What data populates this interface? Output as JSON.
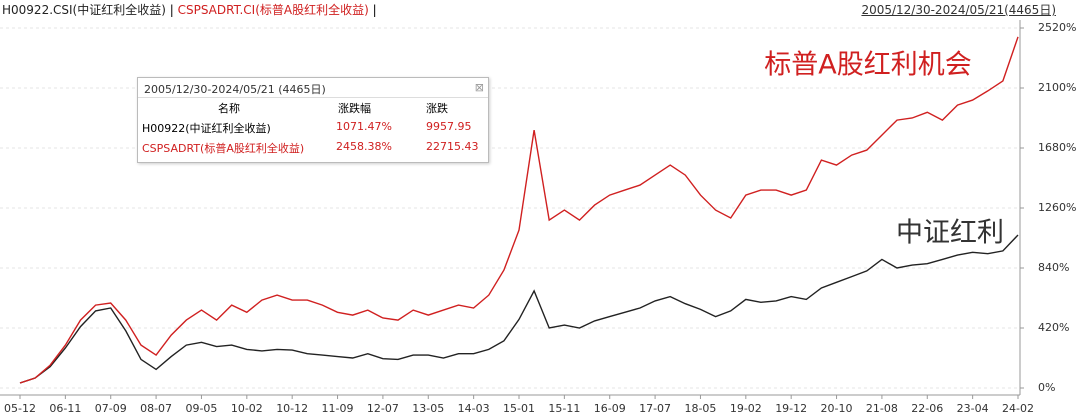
{
  "chart_data": {
    "type": "line",
    "range_label": "2005/12/30-2024/05/21(4465日)",
    "categories": [
      "05-12",
      null,
      null,
      "06-11",
      null,
      null,
      "07-09",
      null,
      null,
      "08-07",
      null,
      null,
      "09-05",
      null,
      null,
      "10-02",
      null,
      null,
      "10-12",
      null,
      null,
      "11-09",
      null,
      null,
      "12-07",
      null,
      null,
      "13-05",
      null,
      null,
      "14-03",
      null,
      null,
      "15-01",
      null,
      null,
      "15-11",
      null,
      null,
      "16-09",
      null,
      null,
      "17-07",
      null,
      null,
      "18-05",
      null,
      null,
      "19-02",
      null,
      null,
      "19-12",
      null,
      null,
      "20-10",
      null,
      null,
      "21-08",
      null,
      null,
      "22-06",
      null,
      null,
      "23-04",
      null,
      null,
      "24-02"
    ],
    "series": [
      {
        "name": "H00922.CSI(中证红利全收益)",
        "color": "#222222",
        "values": [
          35,
          70,
          150,
          280,
          430,
          540,
          560,
          400,
          200,
          130,
          220,
          300,
          320,
          290,
          300,
          270,
          260,
          270,
          265,
          240,
          230,
          220,
          210,
          240,
          205,
          200,
          230,
          230,
          210,
          240,
          240,
          270,
          330,
          480,
          680,
          420,
          440,
          420,
          470,
          500,
          530,
          560,
          610,
          640,
          590,
          550,
          500,
          540,
          620,
          600,
          610,
          640,
          620,
          700,
          740,
          780,
          820,
          900,
          840,
          860,
          870,
          900,
          930,
          950,
          940,
          960,
          1071
        ]
      },
      {
        "name": "CSPSADRT.CI(标普A股红利全收益)",
        "color": "#d02020",
        "values": [
          35,
          70,
          160,
          300,
          475,
          580,
          595,
          475,
          300,
          230,
          370,
          475,
          545,
          475,
          580,
          530,
          615,
          650,
          615,
          615,
          580,
          530,
          510,
          545,
          490,
          475,
          545,
          510,
          545,
          580,
          560,
          650,
          825,
          1105,
          1805,
          1175,
          1245,
          1175,
          1280,
          1350,
          1385,
          1420,
          1490,
          1560,
          1490,
          1350,
          1245,
          1190,
          1350,
          1385,
          1385,
          1350,
          1385,
          1595,
          1560,
          1630,
          1665,
          1770,
          1875,
          1890,
          1930,
          1875,
          1980,
          2015,
          2080,
          2150,
          2458
        ]
      }
    ],
    "annotations": [
      "标普A股红利机会",
      "中证红利"
    ],
    "ylim": [
      -14,
      2590
    ],
    "yticks": [
      {
        "value": 0,
        "label": "0%"
      },
      {
        "value": 420,
        "label": "420%"
      },
      {
        "value": 840,
        "label": "840%"
      },
      {
        "value": 1260,
        "label": "1260%"
      },
      {
        "value": 1680,
        "label": "1680%"
      },
      {
        "value": 2100,
        "label": "2100%"
      },
      {
        "value": 2520,
        "label": "2520%"
      }
    ],
    "grid": true
  },
  "table": {
    "title": "2005/12/30-2024/05/21 (4465日)",
    "headers": [
      "名称",
      "涨跌幅",
      "涨跌"
    ],
    "rows": [
      [
        "H00922(中证红利全收益)",
        "1071.47%",
        "9957.95"
      ],
      [
        "CSPSADRT(标普A股红利全收益)",
        "2458.38%",
        "22715.43"
      ]
    ]
  }
}
